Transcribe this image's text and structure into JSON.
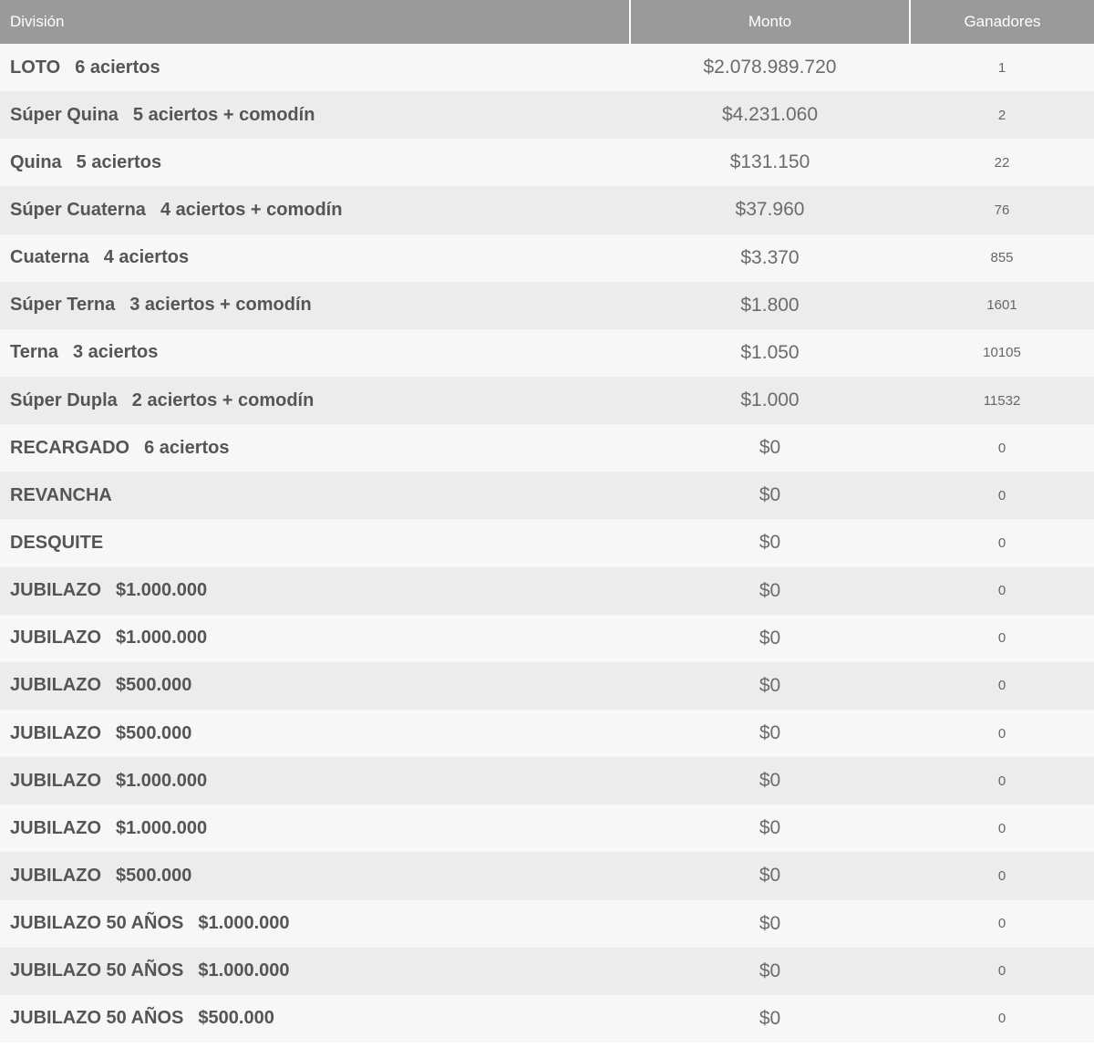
{
  "header": {
    "division": "División",
    "monto": "Monto",
    "ganadores": "Ganadores"
  },
  "rows": [
    {
      "name": "LOTO",
      "detail": "6 aciertos",
      "monto": "$2.078.989.720",
      "ganadores": "1"
    },
    {
      "name": "Súper Quina",
      "detail": "5 aciertos + comodín",
      "monto": "$4.231.060",
      "ganadores": "2"
    },
    {
      "name": "Quina",
      "detail": "5 aciertos",
      "monto": "$131.150",
      "ganadores": "22"
    },
    {
      "name": "Súper Cuaterna",
      "detail": "4 aciertos + comodín",
      "monto": "$37.960",
      "ganadores": "76"
    },
    {
      "name": "Cuaterna",
      "detail": "4 aciertos",
      "monto": "$3.370",
      "ganadores": "855"
    },
    {
      "name": "Súper Terna",
      "detail": "3 aciertos + comodín",
      "monto": "$1.800",
      "ganadores": "1601"
    },
    {
      "name": "Terna",
      "detail": "3 aciertos",
      "monto": "$1.050",
      "ganadores": "10105"
    },
    {
      "name": "Súper Dupla",
      "detail": "2 aciertos + comodín",
      "monto": "$1.000",
      "ganadores": "11532"
    },
    {
      "name": "RECARGADO",
      "detail": "6 aciertos",
      "monto": "$0",
      "ganadores": "0"
    },
    {
      "name": "REVANCHA",
      "detail": "",
      "monto": "$0",
      "ganadores": "0"
    },
    {
      "name": "DESQUITE",
      "detail": "",
      "monto": "$0",
      "ganadores": "0"
    },
    {
      "name": "JUBILAZO",
      "detail": "$1.000.000",
      "monto": "$0",
      "ganadores": "0"
    },
    {
      "name": "JUBILAZO",
      "detail": "$1.000.000",
      "monto": "$0",
      "ganadores": "0"
    },
    {
      "name": "JUBILAZO",
      "detail": "$500.000",
      "monto": "$0",
      "ganadores": "0"
    },
    {
      "name": "JUBILAZO",
      "detail": "$500.000",
      "monto": "$0",
      "ganadores": "0"
    },
    {
      "name": "JUBILAZO",
      "detail": "$1.000.000",
      "monto": "$0",
      "ganadores": "0"
    },
    {
      "name": "JUBILAZO",
      "detail": "$1.000.000",
      "monto": "$0",
      "ganadores": "0"
    },
    {
      "name": "JUBILAZO",
      "detail": "$500.000",
      "monto": "$0",
      "ganadores": "0"
    },
    {
      "name": "JUBILAZO 50 AÑOS",
      "detail": "$1.000.000",
      "monto": "$0",
      "ganadores": "0"
    },
    {
      "name": "JUBILAZO 50 AÑOS",
      "detail": "$1.000.000",
      "monto": "$0",
      "ganadores": "0"
    },
    {
      "name": "JUBILAZO 50 AÑOS",
      "detail": "$500.000",
      "monto": "$0",
      "ganadores": "0"
    }
  ]
}
